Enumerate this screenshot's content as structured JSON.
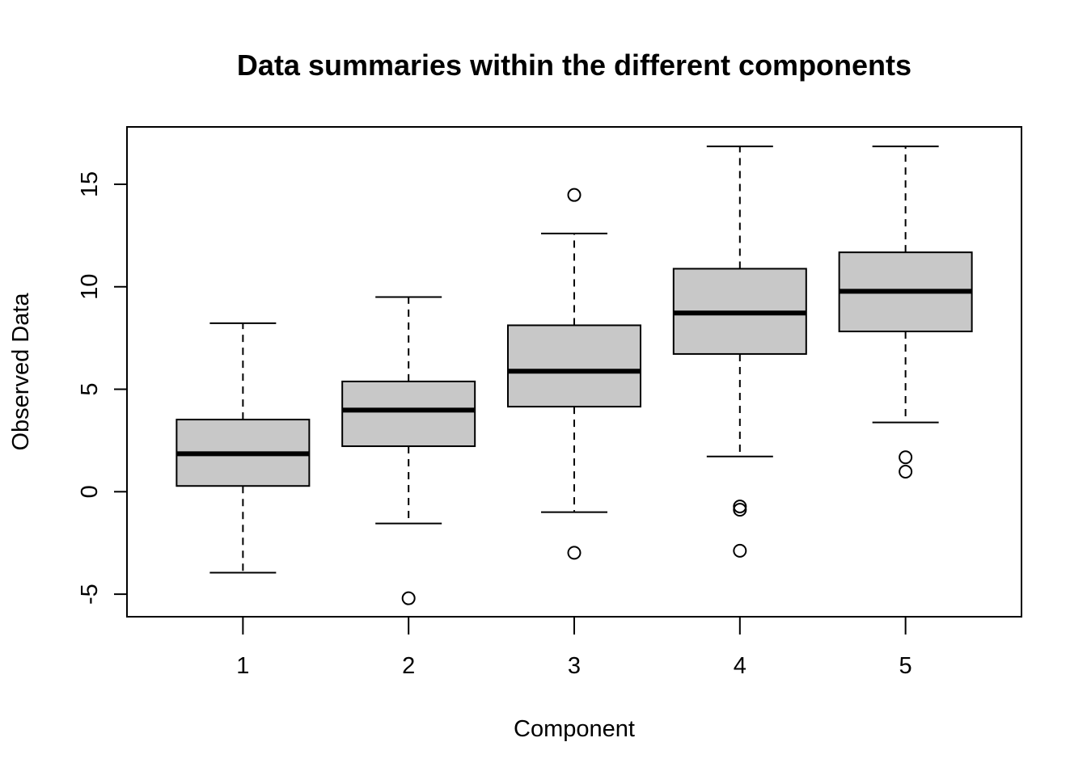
{
  "chart_data": {
    "type": "boxplot",
    "title": "Data summaries within the different components",
    "xlabel": "Component",
    "ylabel": "Observed Data",
    "categories": [
      "1",
      "2",
      "3",
      "4",
      "5"
    ],
    "ylim": [
      -6.1,
      17.8
    ],
    "yticks": [
      -5,
      0,
      5,
      10,
      15
    ],
    "ytick_labels": [
      "-5",
      "0",
      "5",
      "10",
      "15"
    ],
    "grid": false,
    "box_fill": "#c8c8c8",
    "stroke_color": "#000000",
    "boxes": [
      {
        "name": "1",
        "whisker_low": -3.95,
        "q1": 0.28,
        "median": 1.85,
        "q3": 3.52,
        "whisker_high": 8.22,
        "outliers": []
      },
      {
        "name": "2",
        "whisker_low": -1.55,
        "q1": 2.22,
        "median": 3.98,
        "q3": 5.38,
        "whisker_high": 9.5,
        "outliers": [
          -5.2
        ]
      },
      {
        "name": "3",
        "whisker_low": -1.0,
        "q1": 4.15,
        "median": 5.88,
        "q3": 8.12,
        "whisker_high": 12.6,
        "outliers": [
          14.48,
          -2.98
        ]
      },
      {
        "name": "4",
        "whisker_low": 1.72,
        "q1": 6.72,
        "median": 8.72,
        "q3": 10.88,
        "whisker_high": 16.85,
        "outliers": [
          -0.72,
          -0.88,
          -2.88
        ]
      },
      {
        "name": "5",
        "whisker_low": 3.38,
        "q1": 7.82,
        "median": 9.78,
        "q3": 11.68,
        "whisker_high": 16.85,
        "outliers": [
          1.68,
          0.98
        ]
      }
    ]
  }
}
